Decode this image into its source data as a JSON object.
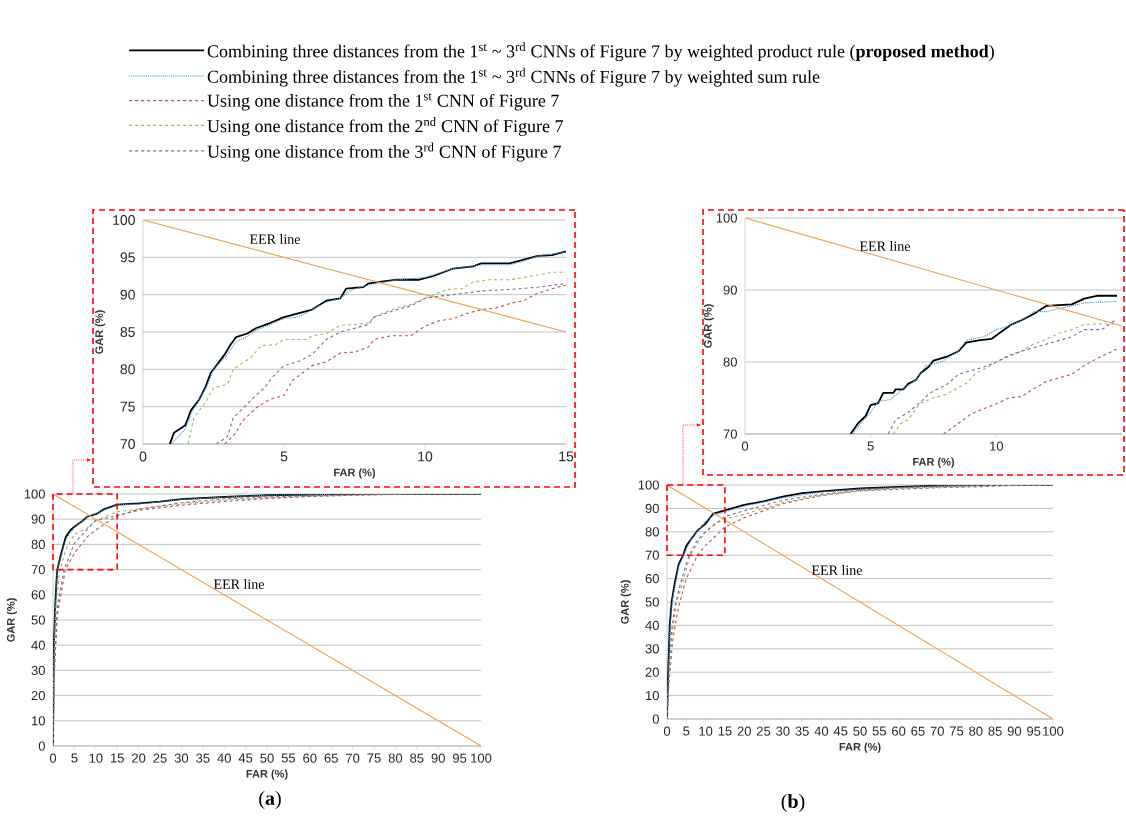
{
  "chart_data": [
    {
      "type": "line",
      "xlabel": "FAR (%)",
      "ylabel": "GAR (%)",
      "xlim": [
        0,
        15
      ],
      "ylim": [
        70,
        100
      ],
      "xticks": [
        0,
        5,
        10,
        15
      ],
      "yticks": [
        70,
        75,
        80,
        85,
        90,
        95,
        100
      ],
      "grid": "y",
      "legend": "top",
      "annotations": [
        "EER line"
      ],
      "series": [
        {
          "name": "Combining three distances from the 1$^{st}$ ~ 3$^{rd}$ CNNs of Figure 7 by weighted product rule (**proposed method**)",
          "color": "#000000",
          "line_style": "solid",
          "x": [
            0.95,
            1.1,
            1.5,
            1.7,
            2.0,
            2.2,
            2.4,
            2.6,
            2.9,
            3.1,
            3.3,
            3.7,
            4.0,
            4.5,
            5.0,
            5.5,
            6.0,
            6.5,
            7.0,
            7.2,
            7.8,
            8.0,
            9.0,
            9.8,
            10.3,
            11.0,
            11.7,
            12.0,
            13.0,
            13.5,
            14.0,
            14.5,
            15
          ],
          "values": [
            70,
            71.5,
            72.5,
            74.5,
            76,
            77.5,
            79.5,
            80.5,
            82,
            83.3,
            84.3,
            84.8,
            85.5,
            86.2,
            87,
            87.5,
            88,
            89.2,
            89.5,
            90.8,
            91,
            91.5,
            92,
            92,
            92.5,
            93.5,
            93.8,
            94.2,
            94.2,
            94.7,
            95.2,
            95.3,
            95.8
          ]
        },
        {
          "name": "Combining three distances from the 1$^{st}$ ~ 3$^{rd}$ CNNs of Figure 7 by weighted sum rule",
          "color": "#3a9ad9",
          "line_style": "dotted",
          "x": [
            1.0,
            1.5,
            1.7,
            2.0,
            2.3,
            2.5,
            3.0,
            3.3,
            3.6,
            4.0,
            5.0,
            5.5,
            6.0,
            6.5,
            7.0,
            7.3,
            8.0,
            9.0,
            10.0,
            11.0,
            12.0,
            13.0,
            13.5,
            14.0,
            15
          ],
          "values": [
            70,
            72,
            74,
            76,
            78,
            80,
            82,
            83.7,
            84.2,
            85.2,
            86.8,
            87,
            88,
            89,
            89.5,
            90.5,
            91.3,
            92,
            92.3,
            93.5,
            94,
            94,
            94.5,
            95.2,
            95.7
          ]
        },
        {
          "name": "Using one distance from the 1$^{st}$ CNN of Figure 7",
          "color": "#c0504d",
          "line_style": "dashed",
          "x": [
            2.9,
            3.3,
            3.5,
            4.0,
            4.5,
            5.0,
            5.3,
            6.0,
            6.5,
            7.0,
            7.5,
            8.0,
            8.2,
            8.8,
            9.5,
            10.0,
            10.5,
            11.0,
            11.5,
            12.0,
            12.5,
            13.0,
            13.5,
            14.0,
            14.5,
            15
          ],
          "values": [
            70,
            71.5,
            73,
            74.8,
            76,
            76.5,
            78.5,
            80.5,
            81,
            82.2,
            82.3,
            83,
            84,
            84.5,
            84.5,
            85.8,
            86.5,
            86.8,
            87.5,
            88,
            88.2,
            88.8,
            89.2,
            90.2,
            90.8,
            91.3
          ]
        },
        {
          "name": "Using one distance from the 2$^{nd}$ CNN of Figure 7",
          "color": "#9bbb59",
          "line_style": "dashed",
          "x": [
            1.6,
            1.8,
            2.2,
            2.5,
            3.0,
            3.2,
            3.5,
            3.8,
            4.2,
            4.7,
            5.0,
            5.8,
            6.0,
            6.5,
            7.0,
            7.5,
            8.0,
            8.2,
            8.8,
            9.5,
            10.0,
            10.3,
            10.8,
            11.3,
            11.7,
            12.3,
            13.0,
            13.5,
            14.5,
            15
          ],
          "values": [
            70,
            73.5,
            75.5,
            77.5,
            78,
            80,
            80.8,
            81.5,
            83.2,
            83.3,
            84,
            84,
            84.5,
            84.8,
            85.9,
            86,
            86.2,
            87,
            88,
            88.7,
            89.5,
            90,
            90.7,
            90.8,
            91.7,
            92,
            92,
            92.3,
            93,
            93
          ]
        },
        {
          "name": "Using one distance from the 3$^{rd}$ CNN of Figure 7",
          "color": "#8064a2",
          "line_style": "dashed",
          "x": [
            2.6,
            3.0,
            3.2,
            3.6,
            4.0,
            4.3,
            4.6,
            5.0,
            5.5,
            6.0,
            6.5,
            7.0,
            7.5,
            8.0,
            8.2,
            9.0,
            9.5,
            10.0,
            10.5,
            11.0,
            12.0,
            13.0,
            14.0,
            15
          ],
          "values": [
            70,
            71,
            73.5,
            75,
            76.5,
            77.5,
            79,
            80.5,
            81,
            82,
            84,
            85,
            85.5,
            86,
            87,
            88,
            88.5,
            89.5,
            89.8,
            90,
            90.5,
            90.7,
            91,
            91.5
          ]
        },
        {
          "color": "#f0a050",
          "line_style": "solid",
          "x": [
            0,
            15
          ],
          "values": [
            100,
            85
          ]
        }
      ]
    },
    {
      "type": "line",
      "xlabel": "FAR (%)",
      "ylabel": "GAR (%)",
      "xlim": [
        0,
        15
      ],
      "ylim": [
        70,
        100
      ],
      "xticks": [
        0,
        5,
        10
      ],
      "yticks": [
        70,
        80,
        90,
        100
      ],
      "grid": "y",
      "annotations": [
        "EER line"
      ],
      "series": [
        {
          "color": "#000000",
          "line_style": "solid",
          "x": [
            4.2,
            4.5,
            4.8,
            5.0,
            5.3,
            5.5,
            5.9,
            6.0,
            6.3,
            6.5,
            6.8,
            7.0,
            7.3,
            7.5,
            8.0,
            8.5,
            8.8,
            9.3,
            9.8,
            10.2,
            10.6,
            11.0,
            11.5,
            12.0,
            13.0,
            13.5,
            14.0,
            14.8
          ],
          "values": [
            70,
            71.5,
            72.5,
            74,
            74.3,
            75.7,
            75.7,
            76.2,
            76.2,
            77,
            77.5,
            78.5,
            79.3,
            80.2,
            80.7,
            81.5,
            82.7,
            83,
            83.2,
            84.2,
            85.2,
            85.8,
            86.7,
            87.8,
            88,
            88.8,
            89.2,
            89.2
          ]
        },
        {
          "color": "#3a9ad9",
          "line_style": "dotted",
          "x": [
            4.3,
            4.6,
            5.0,
            5.3,
            5.8,
            6.2,
            6.8,
            7.2,
            7.8,
            8.5,
            8.8,
            9.5,
            10.0,
            10.5,
            11.0,
            11.5,
            12.0,
            13.0,
            13.5,
            14.0,
            14.8
          ],
          "values": [
            70,
            71.5,
            73,
            74.5,
            74.8,
            76,
            77.5,
            79.5,
            80,
            81.5,
            83,
            83.5,
            84.5,
            85,
            85.8,
            87,
            87,
            87.8,
            88.2,
            88.3,
            88.4
          ]
        },
        {
          "color": "#c0504d",
          "line_style": "dashed",
          "x": [
            7.9,
            8.5,
            9.0,
            9.5,
            10.0,
            10.5,
            11.0,
            11.5,
            12.0,
            12.5,
            13.0,
            13.5,
            14.0,
            14.8
          ],
          "values": [
            70,
            71.5,
            72.8,
            73.5,
            74.2,
            75,
            75.2,
            76.3,
            77.3,
            77.8,
            78.3,
            79.5,
            80.5,
            81.8
          ]
        },
        {
          "color": "#9bbb59",
          "line_style": "dashed",
          "x": [
            5.9,
            6.2,
            6.5,
            6.8,
            7.0,
            7.5,
            8.0,
            8.5,
            8.8,
            9.2,
            9.5,
            10.0,
            10.5,
            11.0,
            11.5,
            12.0,
            12.5,
            13.0,
            13.5,
            14.0,
            14.8
          ],
          "values": [
            70,
            71.5,
            72,
            73.5,
            74.3,
            75,
            75.5,
            76.5,
            77,
            78.5,
            79,
            80,
            81,
            81.5,
            82.5,
            83.2,
            84,
            84.5,
            85.2,
            85.3,
            85.3
          ]
        },
        {
          "color": "#8064a2",
          "line_style": "dashed",
          "x": [
            5.7,
            6.0,
            6.5,
            7.0,
            7.3,
            7.5,
            8.0,
            8.5,
            9.0,
            9.5,
            10.0,
            10.5,
            11.0,
            11.5,
            12.0,
            12.5,
            13.0,
            13.5,
            14.2,
            14.8
          ],
          "values": [
            70,
            72,
            73,
            74.5,
            75.5,
            76,
            76.8,
            78.3,
            78.8,
            79.3,
            80,
            80.8,
            81.5,
            82,
            82.5,
            83,
            83.5,
            84.5,
            84.5,
            86
          ]
        },
        {
          "color": "#f0a050",
          "line_style": "solid",
          "x": [
            0,
            15
          ],
          "values": [
            100,
            85
          ]
        }
      ]
    },
    {
      "type": "line",
      "xlabel": "FAR (%)",
      "ylabel": "GAR (%)",
      "xlim": [
        0,
        100
      ],
      "ylim": [
        0,
        100
      ],
      "xticks": [
        0,
        5,
        10,
        15,
        20,
        25,
        30,
        35,
        40,
        45,
        50,
        55,
        60,
        65,
        70,
        75,
        80,
        85,
        90,
        95,
        100
      ],
      "yticks": [
        0,
        10,
        20,
        30,
        40,
        50,
        60,
        70,
        80,
        90,
        100
      ],
      "grid": "y",
      "annotations": [
        "EER line",
        "(**a**)"
      ],
      "series": [
        {
          "color": "#000000",
          "line_style": "solid",
          "x": [
            0,
            0.2,
            0.5,
            0.8,
            1,
            2,
            3,
            4,
            5,
            7,
            8,
            10,
            12,
            15,
            20,
            25,
            30,
            40,
            50,
            60,
            70,
            100
          ],
          "values": [
            0,
            40,
            55,
            65,
            70,
            77,
            83,
            85.5,
            87,
            89.5,
            91,
            92,
            94,
            95.8,
            96.3,
            97,
            98,
            98.8,
            99.5,
            99.8,
            100,
            100
          ]
        },
        {
          "color": "#3a9ad9",
          "line_style": "dotted",
          "x": [
            0,
            0.2,
            0.5,
            1,
            2,
            3,
            5,
            8,
            10,
            15,
            20,
            30,
            40,
            50,
            70,
            100
          ],
          "values": [
            0,
            38,
            53,
            70,
            76,
            82,
            86.8,
            91,
            92.3,
            95.7,
            96,
            97.8,
            98.8,
            99.5,
            100,
            100
          ]
        },
        {
          "color": "#c0504d",
          "line_style": "dashed",
          "x": [
            0,
            0.3,
            1,
            2.9,
            5,
            8,
            10,
            15,
            20,
            30,
            40,
            50,
            60,
            70,
            85,
            100
          ],
          "values": [
            0,
            28,
            52,
            70,
            76.5,
            83,
            85.8,
            91.3,
            94,
            96.5,
            98,
            98.8,
            99.3,
            99.7,
            100,
            100
          ]
        },
        {
          "color": "#9bbb59",
          "line_style": "dashed",
          "x": [
            0,
            0.3,
            0.7,
            1.6,
            3,
            5,
            8,
            10,
            15,
            20,
            30,
            40,
            50,
            60,
            70,
            85,
            100
          ],
          "values": [
            0,
            35,
            55,
            70,
            78,
            84,
            86.5,
            89.5,
            93,
            94,
            96,
            97.5,
            98.5,
            99,
            99.5,
            100,
            100
          ]
        },
        {
          "color": "#8064a2",
          "line_style": "dashed",
          "x": [
            0,
            0.3,
            1,
            2.6,
            5,
            8,
            10,
            15,
            20,
            30,
            40,
            50,
            60,
            70,
            85,
            100
          ],
          "values": [
            0,
            30,
            55,
            70,
            80.5,
            86,
            89.5,
            91.5,
            93.5,
            95.5,
            97,
            98.2,
            99,
            99.5,
            100,
            100
          ]
        },
        {
          "color": "#f0a050",
          "line_style": "solid",
          "x": [
            0,
            100
          ],
          "values": [
            100,
            0
          ]
        }
      ]
    },
    {
      "type": "line",
      "xlabel": "FAR (%)",
      "ylabel": "GAR (%)",
      "xlim": [
        0,
        100
      ],
      "ylim": [
        0,
        100
      ],
      "xticks": [
        0,
        5,
        10,
        15,
        20,
        25,
        30,
        35,
        40,
        45,
        50,
        55,
        60,
        65,
        70,
        75,
        80,
        85,
        90,
        95,
        100
      ],
      "yticks": [
        0,
        10,
        20,
        30,
        40,
        50,
        60,
        70,
        80,
        90,
        100
      ],
      "grid": "y",
      "annotations": [
        "EER line",
        "(**b**)"
      ],
      "series": [
        {
          "color": "#000000",
          "line_style": "solid",
          "x": [
            0,
            0.3,
            0.7,
            1.2,
            2,
            3,
            4.2,
            5,
            7,
            8,
            10,
            12,
            15,
            20,
            25,
            30,
            35,
            40,
            50,
            60,
            70,
            80,
            100
          ],
          "values": [
            0,
            20,
            40,
            50,
            58,
            66,
            70,
            74,
            78.5,
            80.7,
            83.5,
            87.8,
            89.2,
            91.5,
            93,
            95,
            96.5,
            97.3,
            98.5,
            99.2,
            99.7,
            100,
            100
          ]
        },
        {
          "color": "#3a9ad9",
          "line_style": "dotted",
          "x": [
            0,
            0.3,
            0.8,
            1.5,
            3,
            4.3,
            6,
            8,
            10,
            12,
            15,
            20,
            30,
            40,
            50,
            60,
            70,
            80,
            100
          ],
          "values": [
            0,
            19,
            40,
            52,
            65,
            70,
            76,
            80.5,
            84.5,
            87,
            88.6,
            91,
            94.5,
            97,
            98.3,
            99,
            99.6,
            100,
            100
          ]
        },
        {
          "color": "#c0504d",
          "line_style": "dashed",
          "x": [
            0,
            0.5,
            1.5,
            3,
            5,
            7.9,
            10,
            12,
            15,
            20,
            30,
            40,
            50,
            60,
            70,
            80,
            90,
            100
          ],
          "values": [
            0,
            15,
            34,
            48,
            60,
            70,
            74.2,
            77.3,
            82,
            86,
            92,
            95.5,
            97.5,
            98.2,
            98.8,
            99.2,
            99.8,
            100
          ]
        },
        {
          "color": "#9bbb59",
          "line_style": "dashed",
          "x": [
            0,
            0.5,
            1.3,
            2.5,
            4,
            6,
            8,
            10,
            12,
            15,
            20,
            30,
            40,
            50,
            60,
            70,
            85,
            100
          ],
          "values": [
            0,
            18,
            36,
            50,
            58,
            70,
            75.5,
            80,
            83.2,
            85.5,
            87.5,
            92.5,
            95.5,
            97.5,
            98.5,
            99,
            99.8,
            100
          ]
        },
        {
          "color": "#8064a2",
          "line_style": "dashed",
          "x": [
            0,
            0.5,
            1.2,
            2,
            3.5,
            5.7,
            8,
            10,
            12,
            15,
            20,
            30,
            40,
            50,
            60,
            70,
            85,
            100
          ],
          "values": [
            0,
            20,
            38,
            48,
            58,
            70,
            76.8,
            80,
            82.5,
            86.5,
            89,
            93.5,
            96,
            97.8,
            98.8,
            99.3,
            100,
            100
          ]
        },
        {
          "color": "#f0a050",
          "line_style": "solid",
          "x": [
            0,
            100
          ],
          "values": [
            100,
            0
          ]
        }
      ]
    }
  ]
}
